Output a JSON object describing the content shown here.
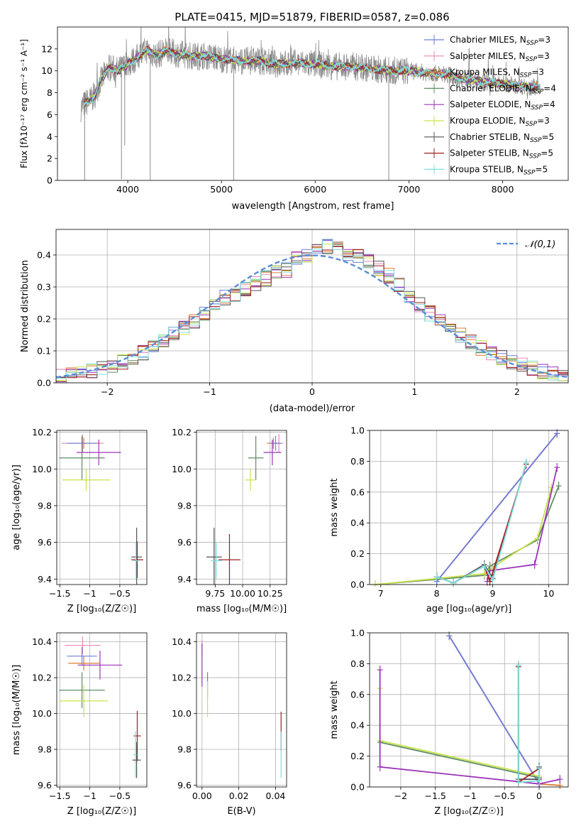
{
  "figure": {
    "title": "PLATE=0415, MJD=51879, FIBERID=0587, z=0.086"
  },
  "series_colors": {
    "chabrier_miles": "#6b7fd9",
    "salpeter_miles": "#e589b5",
    "kroupa_miles": "#e07b2e",
    "chabrier_elodie": "#5e8c62",
    "salpeter_elodie": "#9a34b8",
    "kroupa_elodie": "#c9e34a",
    "chabrier_stelib": "#555555",
    "salpeter_stelib": "#a31f1f",
    "kroupa_stelib": "#7fdfdf",
    "data": "#8a8a8a",
    "gaussian": "#5b8dd6"
  },
  "chart_data": [
    {
      "id": "spectrum",
      "type": "line",
      "title": "PLATE=0415, MJD=51879, FIBERID=0587, z=0.086",
      "xlabel": "wavelength [Angstrom, rest frame]",
      "ylabel": "Flux [fλ10⁻¹⁷ erg cm⁻² s⁻¹ A⁻¹]",
      "xlim": [
        3250,
        8700
      ],
      "ylim": [
        0,
        14
      ],
      "xticks": [
        4000,
        5000,
        6000,
        7000,
        8000
      ],
      "yticks": [
        0,
        2,
        4,
        6,
        8,
        10,
        12
      ],
      "grid": false,
      "legend": "top-right",
      "legend_entries": [
        {
          "label": "Chabrier MILES, N",
          "sub": "SSP",
          "suffix": "=3",
          "color_key": "chabrier_miles"
        },
        {
          "label": "Salpeter MILES, N",
          "sub": "SSP",
          "suffix": "=3",
          "color_key": "salpeter_miles"
        },
        {
          "label": "Kroupa MILES, N",
          "sub": "SSP",
          "suffix": "=3",
          "color_key": "kroupa_miles"
        },
        {
          "label": "Chabrier ELODIE, N",
          "sub": "SSP",
          "suffix": "=4",
          "color_key": "chabrier_elodie"
        },
        {
          "label": "Salpeter ELODIE, N",
          "sub": "SSP",
          "suffix": "=4",
          "color_key": "salpeter_elodie"
        },
        {
          "label": "Kroupa ELODIE, N",
          "sub": "SSP",
          "suffix": "=3",
          "color_key": "kroupa_elodie"
        },
        {
          "label": "Chabrier STELIB, N",
          "sub": "SSP",
          "suffix": "=5",
          "color_key": "chabrier_stelib"
        },
        {
          "label": "Salpeter STELIB, N",
          "sub": "SSP",
          "suffix": "=5",
          "color_key": "salpeter_stelib"
        },
        {
          "label": "Kroupa STELIB, N",
          "sub": "SSP",
          "suffix": "=5",
          "color_key": "kroupa_stelib"
        }
      ],
      "continuum": {
        "wavelength": [
          3500,
          3550,
          3600,
          3650,
          3700,
          3800,
          3900,
          4000,
          4100,
          4200,
          4300,
          4400,
          4500,
          4600,
          4700,
          4800,
          5000,
          5200,
          5400,
          5600,
          5800,
          6000,
          6200,
          6400,
          6600,
          6800,
          7000,
          7200,
          7400,
          7600,
          7800,
          8000,
          8200,
          8400
        ],
        "flux": [
          6.6,
          7.1,
          7.3,
          7.8,
          8.9,
          10.3,
          10.0,
          10.6,
          11.2,
          11.9,
          11.4,
          11.8,
          11.6,
          11.5,
          11.3,
          11.4,
          11.1,
          10.9,
          10.9,
          10.6,
          10.7,
          10.6,
          10.4,
          10.4,
          10.2,
          10.0,
          10.0,
          9.8,
          9.7,
          9.2,
          9.0,
          8.8,
          8.6,
          8.5
        ]
      },
      "spectral_features": [
        {
          "wavelength": 3540,
          "flux": 0.0
        },
        {
          "wavelength": 3933,
          "flux": 0.1
        },
        {
          "wavelength": 3968,
          "flux": 3.2
        },
        {
          "wavelength": 4240,
          "flux": 0.0
        },
        {
          "wavelength": 5130,
          "flux": 0.0
        },
        {
          "wavelength": 6785,
          "flux": 0.0
        },
        {
          "wavelength": 7430,
          "flux": 0.0
        }
      ]
    },
    {
      "id": "residuals",
      "type": "line",
      "xlabel": "(data-model)/error",
      "ylabel": "Normed distribution",
      "xlim": [
        -2.5,
        2.5
      ],
      "ylim": [
        0,
        0.48
      ],
      "xticks": [
        -2,
        -1,
        0,
        1,
        2
      ],
      "yticks": [
        0.0,
        0.1,
        0.2,
        0.3,
        0.4
      ],
      "grid": true,
      "legend": "top-right",
      "gaussian_label": "𝒩(0,1)",
      "series_keys": [
        "chabrier_miles",
        "salpeter_miles",
        "kroupa_miles",
        "chabrier_elodie",
        "salpeter_elodie",
        "kroupa_elodie",
        "chabrier_stelib",
        "salpeter_stelib",
        "kroupa_stelib"
      ]
    },
    {
      "id": "age_vs_Z",
      "type": "scatter",
      "xlabel": "Z [log₁₀(Z/Z☉)]",
      "ylabel": "age  [log₁₀(age/yr)]",
      "xlim": [
        -1.55,
        -0.05
      ],
      "ylim": [
        9.37,
        10.21
      ],
      "xticks": [
        -1.5,
        -1.0,
        -0.5
      ],
      "yticks": [
        9.4,
        9.6,
        9.8,
        10.0,
        10.2
      ],
      "grid": true,
      "points": [
        {
          "key": "salpeter_miles",
          "x": -1.12,
          "y": 10.14,
          "xerr": 0.35,
          "yerr": 0.05
        },
        {
          "key": "kroupa_miles",
          "x": -1.1,
          "y": 10.14,
          "xerr": 0.26,
          "yerr": 0.03
        },
        {
          "key": "chabrier_miles",
          "x": -1.13,
          "y": 10.14,
          "xerr": 0.25,
          "yerr": 0.04
        },
        {
          "key": "salpeter_elodie",
          "x": -0.85,
          "y": 10.09,
          "xerr": 0.37,
          "yerr": 0.07
        },
        {
          "key": "chabrier_elodie",
          "x": -1.13,
          "y": 10.06,
          "xerr": 0.38,
          "yerr": 0.12
        },
        {
          "key": "kroupa_elodie",
          "x": -1.06,
          "y": 9.94,
          "xerr": 0.4,
          "yerr": 0.06
        },
        {
          "key": "chabrier_stelib",
          "x": -0.22,
          "y": 9.52,
          "xerr": 0.09,
          "yerr": 0.16
        },
        {
          "key": "salpeter_stelib",
          "x": -0.21,
          "y": 9.505,
          "xerr": 0.1,
          "yerr": 0.1
        },
        {
          "key": "kroupa_stelib",
          "x": -0.23,
          "y": 9.5,
          "xerr": 0.04,
          "yerr": 0.1
        }
      ]
    },
    {
      "id": "age_vs_mass",
      "type": "scatter",
      "xlabel": "mass [log₁₀(M/M☉)]",
      "ylabel": "",
      "xlim": [
        9.58,
        10.4
      ],
      "ylim": [
        9.37,
        10.21
      ],
      "xticks": [
        9.75,
        10.0,
        10.25
      ],
      "xticklabels": [
        "9.75",
        "10.00",
        "10.25"
      ],
      "yticks": [
        9.4,
        9.6,
        9.8,
        10.0,
        10.2
      ],
      "grid": true,
      "points": [
        {
          "key": "salpeter_miles",
          "x": 10.33,
          "y": 10.14,
          "xerr": 0.04,
          "yerr": 0.05
        },
        {
          "key": "kroupa_miles",
          "x": 10.28,
          "y": 10.14,
          "xerr": 0.06,
          "yerr": 0.03
        },
        {
          "key": "chabrier_miles",
          "x": 10.3,
          "y": 10.14,
          "xerr": 0.05,
          "yerr": 0.04
        },
        {
          "key": "salpeter_elodie",
          "x": 10.27,
          "y": 10.09,
          "xerr": 0.08,
          "yerr": 0.07
        },
        {
          "key": "chabrier_elodie",
          "x": 10.12,
          "y": 10.06,
          "xerr": 0.07,
          "yerr": 0.12
        },
        {
          "key": "kroupa_elodie",
          "x": 10.07,
          "y": 9.94,
          "xerr": 0.05,
          "yerr": 0.06
        },
        {
          "key": "chabrier_stelib",
          "x": 9.74,
          "y": 9.52,
          "xerr": 0.07,
          "yerr": 0.16
        },
        {
          "key": "salpeter_stelib",
          "x": 9.88,
          "y": 9.505,
          "xerr": 0.1,
          "yerr": 0.14
        },
        {
          "key": "kroupa_stelib",
          "x": 9.76,
          "y": 9.5,
          "xerr": 0.05,
          "yerr": 0.1
        }
      ]
    },
    {
      "id": "weight_vs_age",
      "type": "line",
      "xlabel": "age  [log₁₀(age/yr)]",
      "ylabel": "mass weight",
      "xlim": [
        6.8,
        10.35
      ],
      "ylim": [
        0,
        1.0
      ],
      "xticks": [
        7,
        8,
        9,
        10
      ],
      "yticks": [
        0.0,
        0.2,
        0.4,
        0.6,
        0.8,
        1.0
      ],
      "grid": true,
      "series": [
        {
          "key": "kroupa_miles",
          "x": [
            8.0,
            10.15
          ],
          "y": [
            0.02,
            0.98
          ]
        },
        {
          "key": "salpeter_miles",
          "x": [
            8.0,
            10.15
          ],
          "y": [
            0.02,
            0.98
          ]
        },
        {
          "key": "chabrier_miles",
          "x": [
            8.0,
            10.15
          ],
          "y": [
            0.02,
            0.98
          ]
        },
        {
          "key": "chabrier_elodie",
          "x": [
            6.9,
            8.85,
            8.95,
            9.8,
            10.18
          ],
          "y": [
            0.0,
            0.06,
            0.12,
            0.29,
            0.64
          ]
        },
        {
          "key": "kroupa_elodie",
          "x": [
            6.9,
            8.85,
            8.95,
            9.8,
            10.05
          ],
          "y": [
            0.0,
            0.07,
            0.1,
            0.3,
            0.63
          ]
        },
        {
          "key": "salpeter_elodie",
          "x": [
            8.9,
            8.95,
            9.75,
            10.15
          ],
          "y": [
            0.02,
            0.09,
            0.13,
            0.76
          ]
        },
        {
          "key": "chabrier_stelib",
          "x": [
            8.0,
            8.3,
            8.85,
            9.0,
            9.6
          ],
          "y": [
            0.05,
            0.01,
            0.13,
            0.04,
            0.79
          ]
        },
        {
          "key": "salpeter_stelib",
          "x": [
            8.0,
            8.3,
            8.85,
            8.95,
            9.6
          ],
          "y": [
            0.05,
            0.01,
            0.12,
            0.02,
            0.78
          ]
        },
        {
          "key": "kroupa_stelib",
          "x": [
            8.0,
            8.3,
            8.85,
            9.0,
            9.6
          ],
          "y": [
            0.05,
            0.01,
            0.12,
            0.03,
            0.79
          ]
        }
      ]
    },
    {
      "id": "mass_vs_Z",
      "type": "scatter",
      "xlabel": "Z [log₁₀(Z/Z☉)]",
      "ylabel": "mass [log₁₀(M/M☉)]",
      "xlim": [
        -1.55,
        -0.05
      ],
      "ylim": [
        9.59,
        10.45
      ],
      "xticks": [
        -1.5,
        -1.0,
        -0.5
      ],
      "yticks": [
        9.6,
        9.8,
        10.0,
        10.2,
        10.4
      ],
      "grid": true,
      "points": [
        {
          "key": "salpeter_miles",
          "x": -1.12,
          "y": 10.38,
          "xerr": 0.3,
          "yerr": 0.05
        },
        {
          "key": "chabrier_miles",
          "x": -1.13,
          "y": 10.32,
          "xerr": 0.25,
          "yerr": 0.05
        },
        {
          "key": "kroupa_miles",
          "x": -1.1,
          "y": 10.28,
          "xerr": 0.26,
          "yerr": 0.04
        },
        {
          "key": "salpeter_elodie",
          "x": -0.83,
          "y": 10.27,
          "xerr": 0.37,
          "yerr": 0.08
        },
        {
          "key": "chabrier_elodie",
          "x": -1.13,
          "y": 10.13,
          "xerr": 0.38,
          "yerr": 0.1
        },
        {
          "key": "kroupa_elodie",
          "x": -1.1,
          "y": 10.07,
          "xerr": 0.4,
          "yerr": 0.09
        },
        {
          "key": "salpeter_stelib",
          "x": -0.21,
          "y": 9.875,
          "xerr": 0.06,
          "yerr": 0.14
        },
        {
          "key": "kroupa_stelib",
          "x": -0.24,
          "y": 9.77,
          "xerr": 0.04,
          "yerr": 0.13
        },
        {
          "key": "chabrier_stelib",
          "x": -0.22,
          "y": 9.74,
          "xerr": 0.07,
          "yerr": 0.1
        }
      ]
    },
    {
      "id": "mass_vs_ebv",
      "type": "scatter",
      "xlabel": "E(B-V)",
      "ylabel": "",
      "xlim": [
        -0.003,
        0.046
      ],
      "ylim": [
        9.59,
        10.45
      ],
      "xticks": [
        0.0,
        0.02,
        0.04
      ],
      "xticklabels": [
        "0.00",
        "0.02",
        "0.04"
      ],
      "yticks": [
        9.6,
        9.8,
        10.0,
        10.2,
        10.4
      ],
      "grid": true,
      "points": [
        {
          "key": "salpeter_miles",
          "x": 0.0,
          "y": 10.37,
          "xerr": 0.0,
          "yerr": 0.04
        },
        {
          "key": "salpeter_elodie",
          "x": 0.0,
          "y": 10.27,
          "xerr": 0.0,
          "yerr": 0.12
        },
        {
          "key": "chabrier_elodie",
          "x": 0.003,
          "y": 10.16,
          "xerr": 0.0,
          "yerr": 0.07
        },
        {
          "key": "kroupa_elodie",
          "x": 0.003,
          "y": 10.08,
          "xerr": 0.0,
          "yerr": 0.1
        },
        {
          "key": "salpeter_stelib",
          "x": 0.043,
          "y": 9.9,
          "xerr": 0.0,
          "yerr": 0.11
        },
        {
          "key": "kroupa_stelib",
          "x": 0.043,
          "y": 9.77,
          "xerr": 0.0,
          "yerr": 0.13
        }
      ]
    },
    {
      "id": "weight_vs_Z",
      "type": "line",
      "xlabel": "Z [log₁₀(Z/Z☉)]",
      "ylabel": "mass weight",
      "xlim": [
        -2.45,
        0.42
      ],
      "ylim": [
        0,
        1.0
      ],
      "xticks": [
        -2.0,
        -1.5,
        -1.0,
        -0.5,
        0.0
      ],
      "yticks": [
        0.0,
        0.2,
        0.4,
        0.6,
        0.8,
        1.0
      ],
      "grid": true,
      "series": [
        {
          "key": "kroupa_miles",
          "x": [
            -1.3,
            0.0,
            0.3
          ],
          "y": [
            0.98,
            0.02,
            0.01
          ]
        },
        {
          "key": "salpeter_miles",
          "x": [
            -1.3,
            0.0
          ],
          "y": [
            0.98,
            0.02
          ]
        },
        {
          "key": "chabrier_miles",
          "x": [
            -1.3,
            0.0
          ],
          "y": [
            0.98,
            0.02
          ]
        },
        {
          "key": "chabrier_elodie",
          "x": [
            -2.3,
            0.0,
            0.0
          ],
          "y": [
            0.29,
            0.06,
            0.12
          ]
        },
        {
          "key": "kroupa_elodie",
          "x": [
            -2.3,
            -2.3,
            0.0
          ],
          "y": [
            0.64,
            0.3,
            0.07
          ]
        },
        {
          "key": "salpeter_elodie",
          "x": [
            -2.3,
            -2.3,
            0.0,
            0.3
          ],
          "y": [
            0.76,
            0.13,
            0.02,
            0.05
          ]
        },
        {
          "key": "chabrier_stelib",
          "x": [
            -0.3,
            -0.3,
            0.0,
            0.0
          ],
          "y": [
            0.79,
            0.05,
            0.05,
            0.13
          ]
        },
        {
          "key": "salpeter_stelib",
          "x": [
            -0.3,
            -0.3,
            0.0
          ],
          "y": [
            0.78,
            0.03,
            0.12
          ]
        },
        {
          "key": "kroupa_stelib",
          "x": [
            -0.3,
            -0.3,
            0.0,
            0.0
          ],
          "y": [
            0.79,
            0.03,
            0.04,
            0.12
          ]
        }
      ]
    }
  ]
}
